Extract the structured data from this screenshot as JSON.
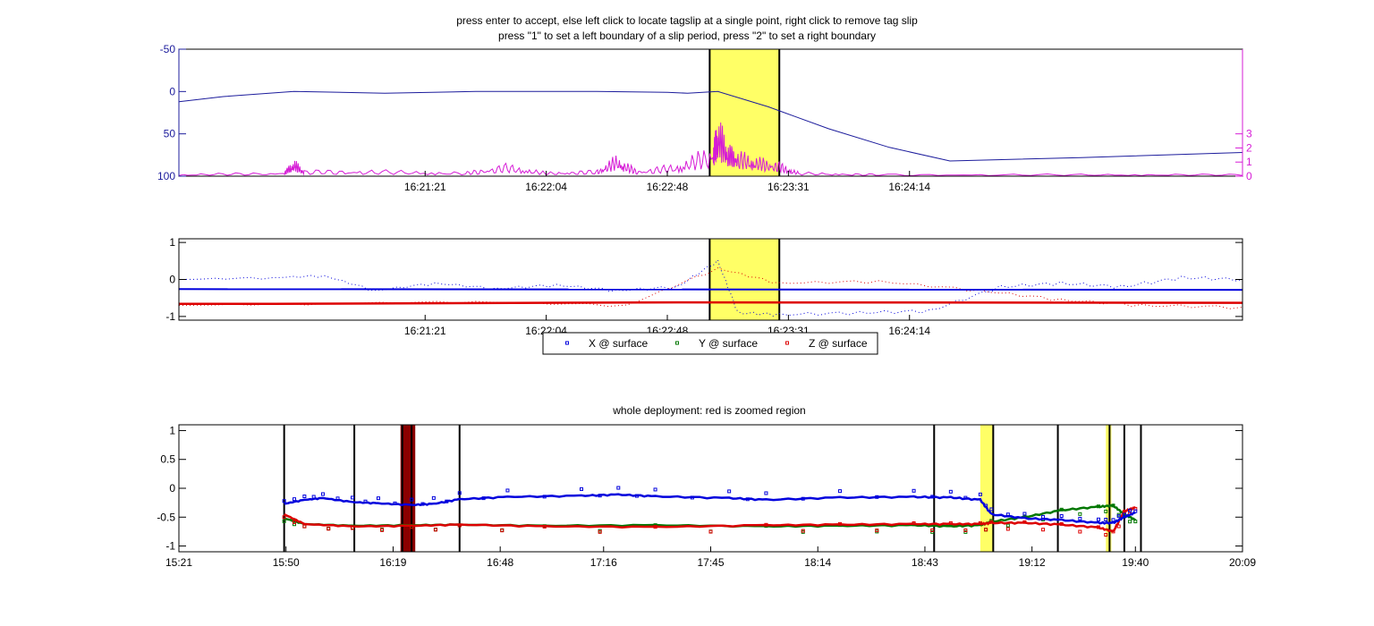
{
  "instructions": {
    "line1": "press enter to accept, else left click to locate tagslip at a single point, right click to remove tag slip",
    "line2": "press \"1\" to set a left boundary of a slip period, press \"2\" to set a right boundary"
  },
  "colors": {
    "axis": "#000000",
    "depth": "#1c1c9c",
    "jerk": "#d61cd6",
    "x_series": "#0000dd",
    "y_series": "#007700",
    "z_series": "#dd0000",
    "slip_highlight": "#ffff66",
    "zoom_region": "#8b0000"
  },
  "chart_data": [
    {
      "type": "line",
      "title": "",
      "x_ticks": [
        "16:21:21",
        "16:22:04",
        "16:22:48",
        "16:23:31",
        "16:24:14"
      ],
      "x_tick_minutes": [
        16.355,
        16.367,
        16.379,
        16.391,
        16.403
      ],
      "x_range_minutes": [
        16.3306,
        16.436
      ],
      "ylim_left": [
        -50,
        100
      ],
      "y_left_inverted": true,
      "y_left_ticks": [
        "-50",
        "0",
        "50",
        "100"
      ],
      "ylim_right": [
        0,
        9
      ],
      "y_right_ticks": [
        "0",
        "1",
        "2",
        "3"
      ],
      "highlight_span_minutes": [
        16.3832,
        16.3901
      ],
      "series": [
        {
          "key": "depth",
          "axis": "left",
          "x": [
            16.3306,
            16.335,
            16.342,
            16.351,
            16.36,
            16.372,
            16.379,
            16.381,
            16.384,
            16.389,
            16.395,
            16.401,
            16.407,
            16.42,
            16.436
          ],
          "y": [
            12,
            6,
            0,
            2,
            0,
            0,
            1,
            2,
            0,
            18,
            44,
            66,
            82,
            78,
            72
          ]
        },
        {
          "key": "jerk",
          "axis": "right",
          "x": [
            16.3306,
            16.341,
            16.342,
            16.343,
            16.35,
            16.359,
            16.363,
            16.367,
            16.372,
            16.374,
            16.376,
            16.38,
            16.3835,
            16.384,
            16.385,
            16.386,
            16.388,
            16.39,
            16.392,
            16.4,
            16.42,
            16.436
          ],
          "y": [
            0.1,
            0.2,
            0.8,
            0.3,
            0.3,
            0.2,
            0.6,
            0.2,
            0.3,
            1.0,
            0.3,
            0.6,
            1.5,
            2.8,
            1.6,
            1.2,
            0.9,
            0.7,
            0.2,
            0.1,
            0.1,
            0.1
          ]
        }
      ]
    },
    {
      "type": "line",
      "title": "",
      "x_ticks": [
        "16:21:21",
        "16:22:04",
        "16:22:48",
        "16:23:31",
        "16:24:14"
      ],
      "x_tick_minutes": [
        16.355,
        16.367,
        16.379,
        16.391,
        16.403
      ],
      "x_range_minutes": [
        16.3306,
        16.436
      ],
      "ylim": [
        -1.1,
        1.1
      ],
      "y_ticks": [
        "-1",
        "0",
        "1"
      ],
      "highlight_span_minutes": [
        16.3832,
        16.3901
      ],
      "legend": [
        {
          "key": "x",
          "label": "X @ surface"
        },
        {
          "key": "y",
          "label": "Y @ surface"
        },
        {
          "key": "z",
          "label": "Z @ surface"
        }
      ],
      "legend_position": "bottom-center",
      "series": [
        {
          "key": "x",
          "x": [
            16.3306,
            16.436
          ],
          "y": [
            -0.26,
            -0.28
          ]
        },
        {
          "key": "z",
          "x": [
            16.3306,
            16.34,
            16.38,
            16.436
          ],
          "y": [
            -0.66,
            -0.66,
            -0.62,
            -0.63
          ]
        },
        {
          "key": "x_dots",
          "x": [
            16.3306,
            16.34,
            16.345,
            16.35,
            16.356,
            16.362,
            16.368,
            16.374,
            16.38,
            16.384,
            16.386,
            16.39,
            16.398,
            16.405,
            16.412,
            16.418,
            16.424,
            16.43,
            16.436
          ],
          "y": [
            0.0,
            0.05,
            0.1,
            -0.3,
            -0.1,
            -0.25,
            -0.15,
            -0.3,
            -0.2,
            0.5,
            -0.9,
            -0.95,
            -0.9,
            -0.85,
            -0.2,
            -0.1,
            -0.2,
            0.05,
            0.0
          ]
        },
        {
          "key": "z_dots",
          "x": [
            16.3306,
            16.345,
            16.36,
            16.375,
            16.384,
            16.39,
            16.4,
            16.41,
            16.418,
            16.426,
            16.436
          ],
          "y": [
            -0.7,
            -0.65,
            -0.6,
            -0.7,
            0.3,
            -0.1,
            -0.05,
            -0.3,
            -0.55,
            -0.7,
            -0.75
          ]
        }
      ]
    },
    {
      "type": "scatter",
      "title": "whole deployment: red is zoomed region",
      "x_ticks": [
        "15:21",
        "15:50",
        "16:19",
        "16:48",
        "17:16",
        "17:45",
        "18:14",
        "18:43",
        "19:12",
        "19:40",
        "20:09"
      ],
      "x_tick_minutes": [
        921,
        950,
        979,
        1008,
        1036,
        1065,
        1094,
        1123,
        1152,
        1180,
        1209
      ],
      "x_range_minutes": [
        921,
        1209
      ],
      "ylim": [
        -1.1,
        1.1
      ],
      "y_ticks": [
        "1",
        "0.5",
        "0",
        "-0.5",
        "-1"
      ],
      "y_tick_values": [
        1,
        0.5,
        0,
        -0.5,
        -1
      ],
      "boundaries_minutes": [
        949.5,
        968.5,
        981.5,
        984.0,
        997.0,
        1125.5,
        1141.5,
        1159.0,
        1173.0,
        1177.0,
        1181.5
      ],
      "highlight_spans_minutes": [
        [
          1138.0,
          1141.5
        ],
        [
          1172.0,
          1173.5
        ]
      ],
      "zoom_region_minutes": [
        981.0,
        985.0
      ],
      "series": [
        {
          "key": "x",
          "name": "X @ surface",
          "x": [
            949.5,
            955,
            960,
            968,
            975,
            984,
            990,
            997,
            1010,
            1030,
            1040,
            1050,
            1070,
            1080,
            1100,
            1120,
            1130,
            1138,
            1141,
            1150,
            1160,
            1170,
            1174,
            1177,
            1180
          ],
          "y": [
            -0.27,
            -0.2,
            -0.17,
            -0.24,
            -0.26,
            -0.29,
            -0.27,
            -0.19,
            -0.15,
            -0.13,
            -0.11,
            -0.14,
            -0.17,
            -0.2,
            -0.16,
            -0.15,
            -0.16,
            -0.2,
            -0.45,
            -0.52,
            -0.55,
            -0.6,
            -0.6,
            -0.5,
            -0.42
          ]
        },
        {
          "key": "y",
          "name": "Y @ surface",
          "x": [
            949.5,
            955,
            968,
            984,
            997,
            1020,
            1050,
            1080,
            1100,
            1120,
            1130,
            1138,
            1141,
            1150,
            1160,
            1170,
            1174,
            1177,
            1180
          ],
          "y": [
            -0.52,
            -0.62,
            -0.65,
            -0.64,
            -0.63,
            -0.65,
            -0.64,
            -0.66,
            -0.65,
            -0.64,
            -0.66,
            -0.64,
            -0.58,
            -0.5,
            -0.38,
            -0.32,
            -0.3,
            -0.45,
            -0.55
          ]
        },
        {
          "key": "z",
          "name": "Z @ surface",
          "x": [
            949.5,
            955,
            968,
            984,
            997,
            1020,
            1050,
            1080,
            1100,
            1120,
            1130,
            1138,
            1141,
            1150,
            1160,
            1170,
            1174,
            1177,
            1180
          ],
          "y": [
            -0.45,
            -0.62,
            -0.66,
            -0.65,
            -0.63,
            -0.66,
            -0.67,
            -0.64,
            -0.63,
            -0.62,
            -0.62,
            -0.62,
            -0.6,
            -0.6,
            -0.63,
            -0.68,
            -0.75,
            -0.4,
            -0.33
          ]
        }
      ]
    }
  ]
}
